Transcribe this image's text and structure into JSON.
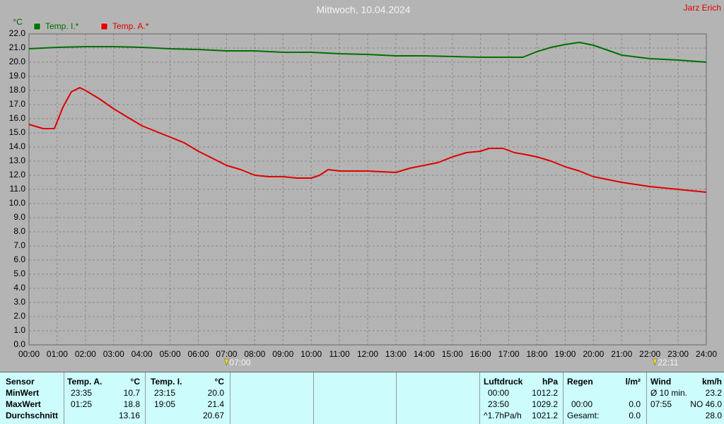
{
  "chart_data": {
    "type": "line",
    "title": "Mittwoch, 10.04.2024",
    "credit": "Jarz Erich",
    "y_label": "°C",
    "xlim": [
      0,
      24
    ],
    "ylim": [
      0,
      22
    ],
    "xticks": [
      {
        "value": 0,
        "label": "00:00"
      },
      {
        "value": 1,
        "label": "01:00"
      },
      {
        "value": 2,
        "label": "02:00"
      },
      {
        "value": 3,
        "label": "03:00"
      },
      {
        "value": 4,
        "label": "04:00"
      },
      {
        "value": 5,
        "label": "05:00"
      },
      {
        "value": 6,
        "label": "06:00"
      },
      {
        "value": 7,
        "label": "07:00"
      },
      {
        "value": 8,
        "label": "08:00"
      },
      {
        "value": 9,
        "label": "09:00"
      },
      {
        "value": 10,
        "label": "10:00"
      },
      {
        "value": 11,
        "label": "11:00"
      },
      {
        "value": 12,
        "label": "12:00"
      },
      {
        "value": 13,
        "label": "13:00"
      },
      {
        "value": 14,
        "label": "14:00"
      },
      {
        "value": 15,
        "label": "15:00"
      },
      {
        "value": 16,
        "label": "16:00"
      },
      {
        "value": 17,
        "label": "17:00"
      },
      {
        "value": 18,
        "label": "18:00"
      },
      {
        "value": 19,
        "label": "19:00"
      },
      {
        "value": 20,
        "label": "20:00"
      },
      {
        "value": 21,
        "label": "21:00"
      },
      {
        "value": 22,
        "label": "22:00"
      },
      {
        "value": 23,
        "label": "23:00"
      },
      {
        "value": 24,
        "label": "24:00"
      }
    ],
    "yticks": [
      {
        "value": 0,
        "label": "0.0"
      },
      {
        "value": 1,
        "label": "1.0"
      },
      {
        "value": 2,
        "label": "2.0"
      },
      {
        "value": 3,
        "label": "3.0"
      },
      {
        "value": 4,
        "label": "4.0"
      },
      {
        "value": 5,
        "label": "5.0"
      },
      {
        "value": 6,
        "label": "6.0"
      },
      {
        "value": 7,
        "label": "7.0"
      },
      {
        "value": 8,
        "label": "8.0"
      },
      {
        "value": 9,
        "label": "9.0"
      },
      {
        "value": 10,
        "label": "10.0"
      },
      {
        "value": 11,
        "label": "11.0"
      },
      {
        "value": 12,
        "label": "12.0"
      },
      {
        "value": 13,
        "label": "13.0"
      },
      {
        "value": 14,
        "label": "14.0"
      },
      {
        "value": 15,
        "label": "15.0"
      },
      {
        "value": 16,
        "label": "16.0"
      },
      {
        "value": 17,
        "label": "17.0"
      },
      {
        "value": 18,
        "label": "18.0"
      },
      {
        "value": 19,
        "label": "19.0"
      },
      {
        "value": 20,
        "label": "20.0"
      },
      {
        "value": 21,
        "label": "21.0"
      },
      {
        "value": 22,
        "label": "22.0"
      }
    ],
    "grid": true,
    "sunrise": {
      "value": 7.0,
      "label": "07:00"
    },
    "sunset": {
      "value": 22.18,
      "label": "22:11"
    },
    "series": [
      {
        "name": "Temp. I.*",
        "color": "#007000",
        "x": [
          0,
          1,
          2,
          3,
          4,
          5,
          6,
          7,
          8,
          9,
          10,
          11,
          12,
          13,
          14,
          15,
          16,
          17,
          17.5,
          18,
          18.5,
          19,
          19.5,
          20,
          20.5,
          21,
          22,
          23,
          24
        ],
        "values": [
          20.95,
          21.05,
          21.1,
          21.1,
          21.05,
          20.95,
          20.9,
          20.8,
          20.8,
          20.7,
          20.7,
          20.6,
          20.55,
          20.45,
          20.45,
          20.4,
          20.35,
          20.35,
          20.35,
          20.75,
          21.05,
          21.25,
          21.4,
          21.2,
          20.85,
          20.5,
          20.25,
          20.15,
          20.0
        ]
      },
      {
        "name": "Temp. A.*",
        "color": "#e00000",
        "x": [
          0,
          0.5,
          0.9,
          1.2,
          1.5,
          1.8,
          2,
          2.5,
          3,
          3.5,
          4,
          4.5,
          5,
          5.5,
          6,
          6.5,
          7,
          7.5,
          8,
          8.5,
          9,
          9.5,
          10,
          10.3,
          10.6,
          11,
          12,
          13,
          13.5,
          14,
          14.5,
          15,
          15.5,
          16,
          16.3,
          16.8,
          17.2,
          17.5,
          18,
          18.5,
          19,
          19.5,
          20,
          20.5,
          21,
          22,
          22.5,
          23,
          23.5,
          24
        ],
        "values": [
          15.6,
          15.3,
          15.3,
          16.8,
          17.9,
          18.2,
          18.0,
          17.4,
          16.7,
          16.1,
          15.5,
          15.1,
          14.7,
          14.3,
          13.7,
          13.2,
          12.7,
          12.4,
          12.0,
          11.9,
          11.9,
          11.8,
          11.8,
          12.0,
          12.4,
          12.3,
          12.3,
          12.2,
          12.5,
          12.7,
          12.9,
          13.3,
          13.6,
          13.7,
          13.9,
          13.9,
          13.6,
          13.5,
          13.3,
          13.0,
          12.6,
          12.3,
          11.9,
          11.7,
          11.5,
          11.2,
          11.1,
          11.0,
          10.9,
          10.8
        ]
      }
    ]
  },
  "panel": {
    "groups": [
      {
        "header": "Sensor",
        "rows": [
          [
            "MinWert"
          ],
          [
            "MaxWert"
          ],
          [
            "Durchschnitt"
          ]
        ]
      },
      {
        "header": "Temp. A.",
        "unit": "°C",
        "rows": [
          [
            "23:35",
            "10.7"
          ],
          [
            "01:25",
            "18.8"
          ],
          [
            null,
            "13.16"
          ]
        ]
      },
      {
        "header": "Temp. I.",
        "unit": "°C",
        "rows": [
          [
            "23:15",
            "20.0"
          ],
          [
            "19:05",
            "21.4"
          ],
          [
            null,
            "20.67"
          ]
        ]
      },
      {
        "header": "Luftdruck",
        "unit": "hPa",
        "rows": [
          [
            "00:00",
            "1012.2"
          ],
          [
            "23:50",
            "1029.2"
          ],
          [
            "^1.7hPa/h",
            "1021.2"
          ]
        ]
      },
      {
        "header": "Regen",
        "unit": "l/m²",
        "rows": [
          [
            null,
            null
          ],
          [
            "00:00",
            "0.0"
          ],
          [
            "Gesamt:",
            "0.0"
          ]
        ]
      },
      {
        "header": "Wind",
        "unit": "km/h",
        "rows": [
          [
            "Ø 10 min.",
            "23.2"
          ],
          [
            "07:55",
            "NO 46.0"
          ],
          [
            null,
            "28.0"
          ]
        ]
      }
    ]
  }
}
